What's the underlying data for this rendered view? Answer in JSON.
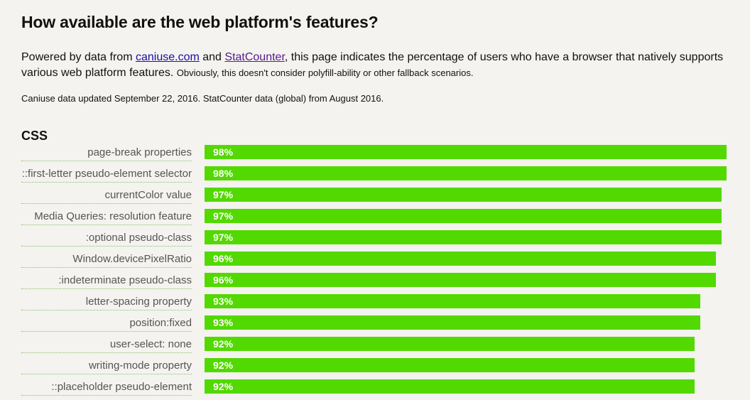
{
  "page": {
    "title": "How available are the web platform's features?",
    "intro": {
      "prefix": "Powered by data from ",
      "link1": "caniuse.com",
      "middle": " and ",
      "link2": "StatCounter",
      "suffix": ", this page indicates the percentage of users who have a browser that natively supports various web platform features. ",
      "note": "Obviously, this doesn't consider polyfill-ability or other fallback scenarios."
    },
    "updated": "Caniuse data updated September 22, 2016. StatCounter data (global) from August 2016.",
    "section_title": "CSS"
  },
  "colors": {
    "bar": "#52d900",
    "background": "#f4f3ef",
    "link": "#1a0dab",
    "link_visited": "#551a8b"
  },
  "chart_data": {
    "type": "bar",
    "orientation": "horizontal",
    "categories": [
      "page-break properties",
      "::first-letter pseudo-element selector",
      "currentColor value",
      "Media Queries: resolution feature",
      ":optional pseudo-class",
      "Window.devicePixelRatio",
      ":indeterminate pseudo-class",
      "letter-spacing property",
      "position:fixed",
      "user-select: none",
      "writing-mode property",
      "::placeholder pseudo-element"
    ],
    "values": [
      98,
      98,
      97,
      97,
      97,
      96,
      96,
      93,
      93,
      92,
      92,
      92
    ],
    "value_labels": [
      "98%",
      "98%",
      "97%",
      "97%",
      "97%",
      "96%",
      "96%",
      "93%",
      "93%",
      "92%",
      "92%",
      "92%"
    ],
    "xlim": [
      0,
      100
    ]
  }
}
